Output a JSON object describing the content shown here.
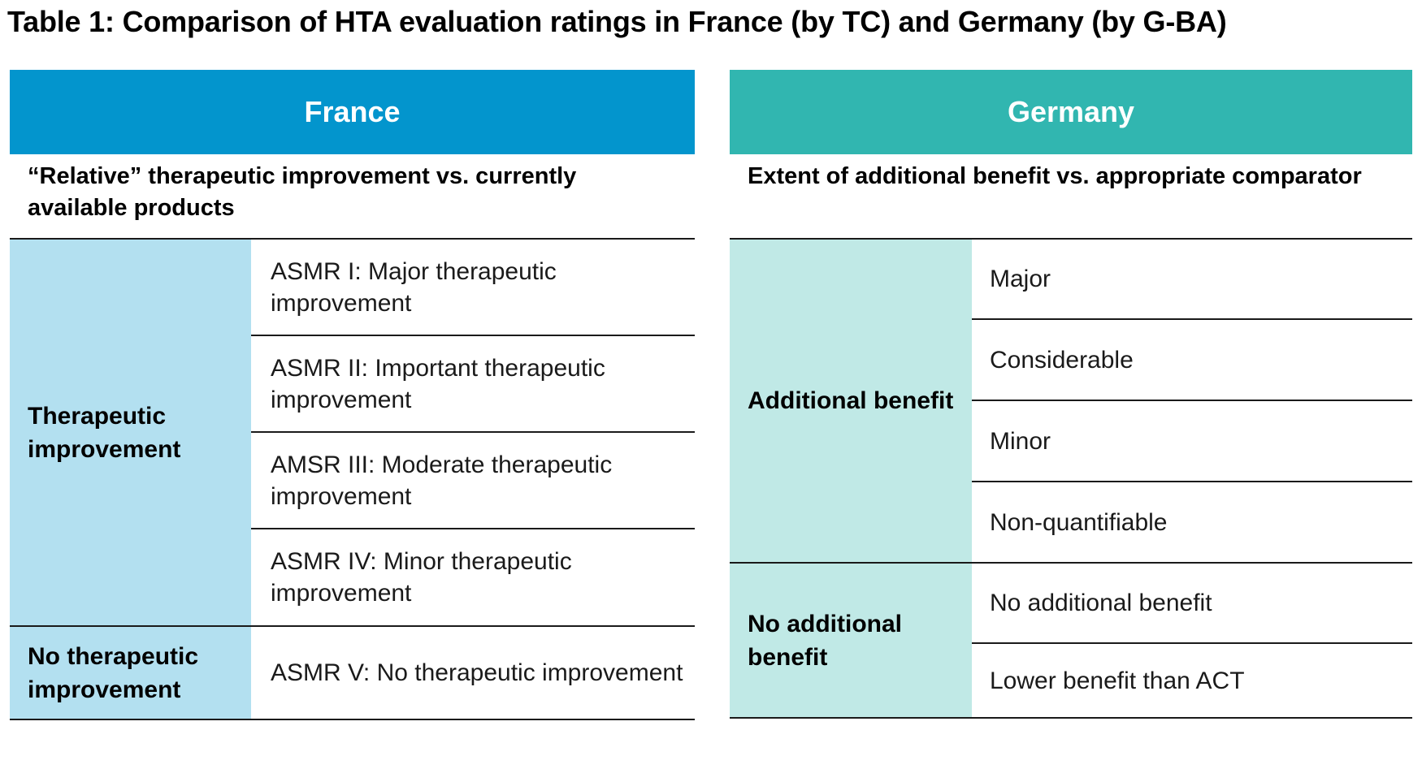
{
  "title": "Table 1: Comparison of HTA evaluation ratings in France (by TC) and Germany (by G-BA)",
  "france": {
    "header": "France",
    "subtitle": "“Relative” therapeutic improvement vs. currently available products",
    "groups": [
      {
        "label": "Therapeutic improvement"
      },
      {
        "label": "No therapeutic improvement"
      }
    ],
    "rows": [
      "ASMR I: Major therapeutic improvement",
      "ASMR II: Important therapeutic improvement",
      "AMSR III: Moderate therapeutic improvement",
      "ASMR IV: Minor therapeutic improvement",
      "ASMR V: No therapeutic improvement"
    ],
    "colors": {
      "header": "#0395cd",
      "group": "#b3e0f0"
    }
  },
  "germany": {
    "header": "Germany",
    "subtitle": "Extent of additional benefit vs. appropriate comparator",
    "groups": [
      {
        "label": "Additional benefit"
      },
      {
        "label": "No additional benefit"
      }
    ],
    "rows": [
      "Major",
      "Considerable",
      "Minor",
      "Non-quantifiable",
      "No additional benefit",
      "Lower benefit than ACT"
    ],
    "colors": {
      "header": "#31b6b0",
      "group": "#c0e9e6"
    }
  }
}
